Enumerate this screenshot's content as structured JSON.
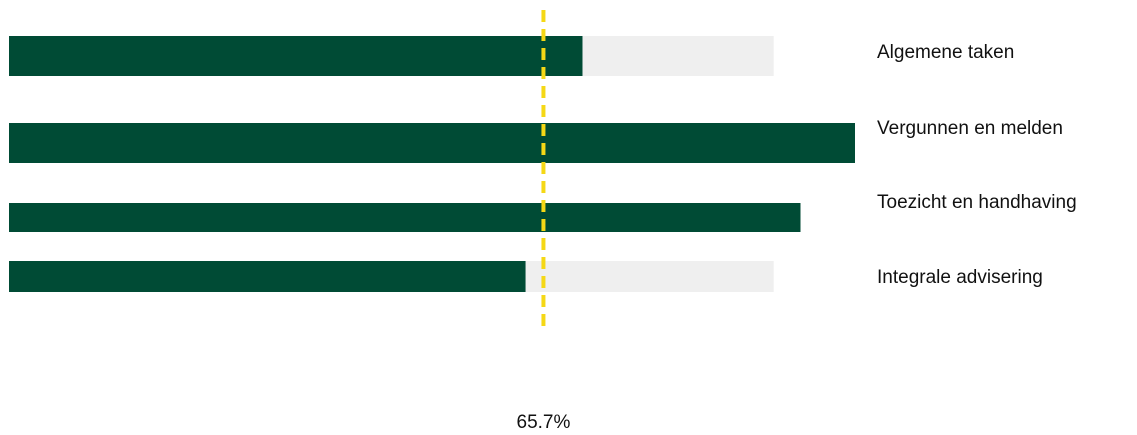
{
  "chart_data": {
    "type": "bar",
    "orientation": "horizontal",
    "categories": [
      "Algemene taken",
      "Vergunnen en melden",
      "Toezicht en handhaving",
      "Integrale advisering"
    ],
    "values": [
      0.705,
      1.04,
      0.973,
      0.635
    ],
    "targets": [
      0.94,
      null,
      null,
      0.94
    ],
    "reference_line": {
      "value": 0.657,
      "label": "65.7%"
    },
    "xlim": [
      0,
      1.04
    ],
    "colors": {
      "bar": "#004B35",
      "background": "#EFEFEF",
      "reference": "#F5D816"
    },
    "legend": "none",
    "grid": false
  }
}
